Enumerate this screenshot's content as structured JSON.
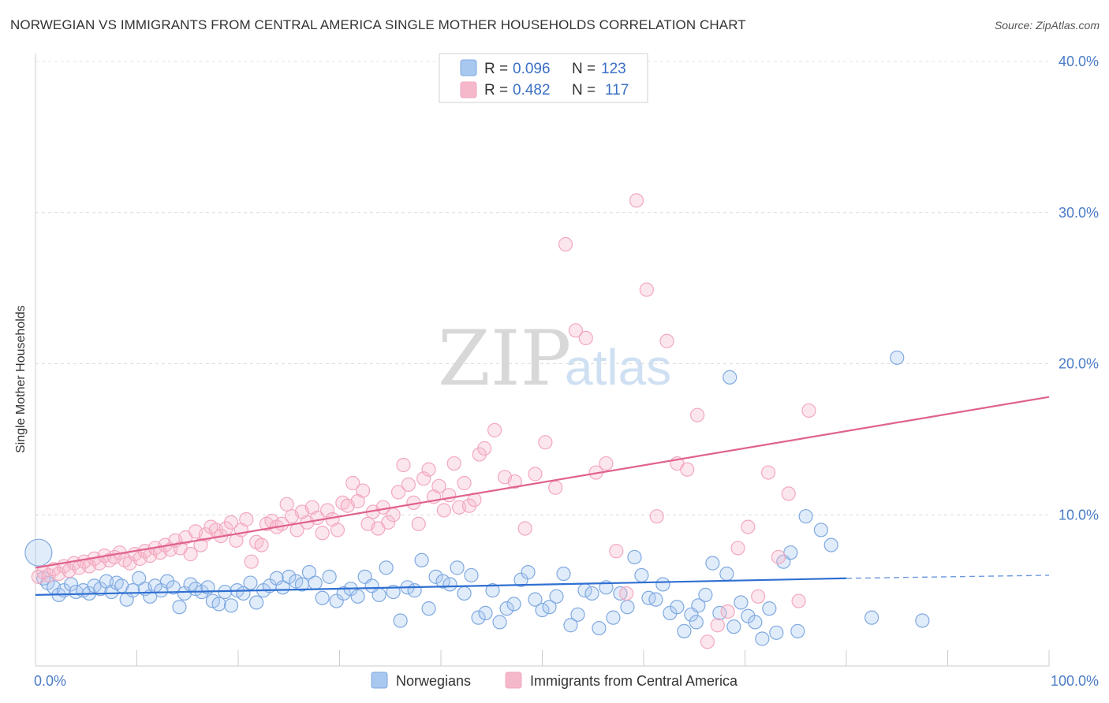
{
  "title": "NORWEGIAN VS IMMIGRANTS FROM CENTRAL AMERICA SINGLE MOTHER HOUSEHOLDS CORRELATION CHART",
  "source": "Source: ZipAtlas.com",
  "watermark": {
    "zip": "ZIP",
    "atlas": "atlas"
  },
  "legend_top": [
    {
      "r_label": "R =",
      "r_value": "0.096",
      "n_label": "N =",
      "n_value": "123",
      "color": "#a9c8f0"
    },
    {
      "r_label": "R =",
      "r_value": "0.482",
      "n_label": "N =",
      "n_value": "117",
      "color": "#f5b8cb"
    }
  ],
  "chart_data": {
    "type": "scatter",
    "title": "NORWEGIAN VS IMMIGRANTS FROM CENTRAL AMERICA SINGLE MOTHER HOUSEHOLDS CORRELATION CHART",
    "xlabel": "",
    "ylabel": "Single Mother Households",
    "xlim": [
      0,
      100
    ],
    "ylim": [
      0,
      40
    ],
    "x_tick_labels": [
      "0.0%",
      "100.0%"
    ],
    "y_ticks": [
      10,
      20,
      30,
      40
    ],
    "y_tick_labels": [
      "10.0%",
      "20.0%",
      "30.0%",
      "40.0%"
    ],
    "grid": "horizontal dashed",
    "legend_placement": "top-center",
    "series": [
      {
        "name": "Norwegians",
        "color": "#7fa9e0",
        "line_color": "#2f6fd1",
        "trend": {
          "x0": 0,
          "y0": 4.7,
          "x1": 80,
          "y1": 5.8,
          "dashed_to": 100,
          "dashed_y": 6.0
        },
        "points": [
          [
            0.3,
            7.5
          ],
          [
            0.8,
            5.8
          ],
          [
            1.2,
            5.5
          ],
          [
            1.8,
            5.2
          ],
          [
            2.3,
            4.7
          ],
          [
            2.8,
            5.0
          ],
          [
            3.5,
            5.4
          ],
          [
            4.0,
            4.9
          ],
          [
            4.7,
            5.0
          ],
          [
            5.3,
            4.8
          ],
          [
            5.8,
            5.3
          ],
          [
            6.4,
            5.1
          ],
          [
            7.0,
            5.6
          ],
          [
            7.5,
            4.9
          ],
          [
            8.0,
            5.5
          ],
          [
            8.5,
            5.3
          ],
          [
            9.0,
            4.4
          ],
          [
            9.6,
            5.0
          ],
          [
            10.2,
            5.8
          ],
          [
            10.8,
            5.1
          ],
          [
            11.3,
            4.6
          ],
          [
            11.8,
            5.3
          ],
          [
            12.4,
            5.0
          ],
          [
            13.0,
            5.6
          ],
          [
            13.6,
            5.2
          ],
          [
            14.2,
            3.9
          ],
          [
            14.7,
            4.8
          ],
          [
            15.3,
            5.4
          ],
          [
            15.8,
            5.1
          ],
          [
            16.4,
            4.9
          ],
          [
            17.0,
            5.2
          ],
          [
            17.5,
            4.3
          ],
          [
            18.1,
            4.1
          ],
          [
            18.7,
            4.9
          ],
          [
            19.3,
            4.0
          ],
          [
            19.9,
            5.0
          ],
          [
            20.5,
            4.8
          ],
          [
            21.2,
            5.5
          ],
          [
            21.8,
            4.2
          ],
          [
            22.5,
            5.0
          ],
          [
            23.1,
            5.3
          ],
          [
            23.8,
            5.8
          ],
          [
            24.4,
            5.2
          ],
          [
            25.0,
            5.9
          ],
          [
            25.7,
            5.6
          ],
          [
            26.3,
            5.4
          ],
          [
            27.0,
            6.2
          ],
          [
            27.6,
            5.5
          ],
          [
            28.3,
            4.5
          ],
          [
            29.0,
            5.9
          ],
          [
            29.7,
            4.3
          ],
          [
            30.4,
            4.8
          ],
          [
            31.1,
            5.1
          ],
          [
            31.8,
            4.6
          ],
          [
            32.5,
            5.9
          ],
          [
            33.2,
            5.3
          ],
          [
            33.9,
            4.7
          ],
          [
            34.6,
            6.5
          ],
          [
            35.3,
            4.9
          ],
          [
            36.0,
            3.0
          ],
          [
            36.7,
            5.2
          ],
          [
            37.4,
            5.0
          ],
          [
            38.1,
            7.0
          ],
          [
            38.8,
            3.8
          ],
          [
            39.5,
            5.9
          ],
          [
            40.2,
            5.6
          ],
          [
            40.9,
            5.4
          ],
          [
            41.6,
            6.5
          ],
          [
            42.3,
            4.8
          ],
          [
            43.0,
            6.0
          ],
          [
            43.7,
            3.2
          ],
          [
            44.4,
            3.5
          ],
          [
            45.1,
            5.0
          ],
          [
            45.8,
            2.9
          ],
          [
            46.5,
            3.8
          ],
          [
            47.2,
            4.1
          ],
          [
            47.9,
            5.7
          ],
          [
            48.6,
            6.2
          ],
          [
            49.3,
            4.4
          ],
          [
            50.0,
            3.7
          ],
          [
            50.7,
            3.9
          ],
          [
            51.4,
            4.6
          ],
          [
            52.1,
            6.1
          ],
          [
            52.8,
            2.7
          ],
          [
            53.5,
            3.4
          ],
          [
            54.2,
            5.0
          ],
          [
            54.9,
            4.8
          ],
          [
            55.6,
            2.5
          ],
          [
            56.3,
            5.2
          ],
          [
            57.0,
            3.2
          ],
          [
            57.7,
            4.8
          ],
          [
            58.4,
            3.9
          ],
          [
            59.1,
            7.2
          ],
          [
            59.8,
            6.0
          ],
          [
            60.5,
            4.5
          ],
          [
            61.2,
            4.4
          ],
          [
            61.9,
            5.4
          ],
          [
            62.6,
            3.5
          ],
          [
            63.3,
            3.9
          ],
          [
            64.0,
            2.3
          ],
          [
            64.7,
            3.4
          ],
          [
            65.4,
            4.0
          ],
          [
            66.1,
            4.7
          ],
          [
            66.8,
            6.8
          ],
          [
            67.5,
            3.5
          ],
          [
            68.2,
            6.1
          ],
          [
            68.9,
            2.6
          ],
          [
            69.6,
            4.2
          ],
          [
            70.3,
            3.3
          ],
          [
            71.0,
            2.9
          ],
          [
            71.7,
            1.8
          ],
          [
            72.4,
            3.8
          ],
          [
            73.1,
            2.2
          ],
          [
            73.8,
            6.9
          ],
          [
            74.5,
            7.5
          ],
          [
            75.2,
            2.3
          ],
          [
            76.0,
            9.9
          ],
          [
            77.5,
            9.0
          ],
          [
            78.5,
            8.0
          ],
          [
            68.5,
            19.1
          ],
          [
            65.2,
            2.9
          ],
          [
            82.5,
            3.2
          ],
          [
            85.0,
            20.4
          ],
          [
            87.5,
            3.0
          ]
        ]
      },
      {
        "name": "Immigrants from Central America",
        "color": "#f2a8bf",
        "line_color": "#e0628e",
        "trend": {
          "x0": 0,
          "y0": 6.5,
          "x1": 100,
          "y1": 17.8
        },
        "points": [
          [
            0.3,
            5.9
          ],
          [
            0.8,
            6.2
          ],
          [
            1.3,
            6.0
          ],
          [
            1.8,
            6.4
          ],
          [
            2.3,
            6.1
          ],
          [
            2.8,
            6.6
          ],
          [
            3.3,
            6.3
          ],
          [
            3.8,
            6.8
          ],
          [
            4.3,
            6.5
          ],
          [
            4.8,
            6.9
          ],
          [
            5.3,
            6.6
          ],
          [
            5.8,
            7.1
          ],
          [
            6.3,
            6.8
          ],
          [
            6.8,
            7.3
          ],
          [
            7.3,
            7.0
          ],
          [
            7.8,
            7.2
          ],
          [
            8.3,
            7.5
          ],
          [
            8.8,
            7.0
          ],
          [
            9.3,
            6.8
          ],
          [
            9.8,
            7.4
          ],
          [
            10.3,
            7.1
          ],
          [
            10.8,
            7.6
          ],
          [
            11.3,
            7.3
          ],
          [
            11.8,
            7.8
          ],
          [
            12.3,
            7.5
          ],
          [
            12.8,
            8.0
          ],
          [
            13.3,
            7.7
          ],
          [
            13.8,
            8.3
          ],
          [
            14.3,
            7.8
          ],
          [
            14.8,
            8.5
          ],
          [
            15.3,
            7.4
          ],
          [
            15.8,
            8.9
          ],
          [
            16.3,
            8.0
          ],
          [
            16.8,
            8.7
          ],
          [
            17.3,
            9.2
          ],
          [
            17.8,
            9.0
          ],
          [
            18.3,
            8.6
          ],
          [
            18.8,
            9.1
          ],
          [
            19.3,
            9.5
          ],
          [
            19.8,
            8.3
          ],
          [
            20.3,
            9.0
          ],
          [
            20.8,
            9.7
          ],
          [
            21.3,
            6.9
          ],
          [
            21.8,
            8.2
          ],
          [
            22.3,
            8.0
          ],
          [
            22.8,
            9.4
          ],
          [
            23.3,
            9.6
          ],
          [
            23.8,
            9.2
          ],
          [
            24.3,
            9.4
          ],
          [
            24.8,
            10.7
          ],
          [
            25.3,
            9.9
          ],
          [
            25.8,
            9.0
          ],
          [
            26.3,
            10.2
          ],
          [
            26.8,
            9.5
          ],
          [
            27.3,
            10.5
          ],
          [
            27.8,
            9.8
          ],
          [
            28.3,
            8.8
          ],
          [
            28.8,
            10.3
          ],
          [
            29.3,
            9.7
          ],
          [
            29.8,
            9.0
          ],
          [
            30.3,
            10.8
          ],
          [
            30.8,
            10.6
          ],
          [
            31.3,
            12.1
          ],
          [
            31.8,
            10.9
          ],
          [
            32.3,
            11.6
          ],
          [
            32.8,
            9.4
          ],
          [
            33.3,
            10.2
          ],
          [
            33.8,
            9.1
          ],
          [
            34.3,
            10.5
          ],
          [
            34.8,
            9.5
          ],
          [
            35.3,
            10.0
          ],
          [
            35.8,
            11.5
          ],
          [
            36.3,
            13.3
          ],
          [
            36.8,
            12.0
          ],
          [
            37.3,
            10.8
          ],
          [
            37.8,
            9.4
          ],
          [
            38.3,
            12.4
          ],
          [
            38.8,
            13.0
          ],
          [
            39.3,
            11.2
          ],
          [
            39.8,
            11.9
          ],
          [
            40.3,
            10.3
          ],
          [
            40.8,
            11.3
          ],
          [
            41.3,
            13.4
          ],
          [
            41.8,
            10.5
          ],
          [
            42.3,
            12.1
          ],
          [
            42.8,
            10.6
          ],
          [
            43.3,
            11.0
          ],
          [
            43.8,
            14.0
          ],
          [
            44.3,
            14.4
          ],
          [
            45.3,
            15.6
          ],
          [
            46.3,
            12.5
          ],
          [
            47.3,
            12.2
          ],
          [
            48.3,
            9.1
          ],
          [
            49.3,
            12.7
          ],
          [
            50.3,
            14.8
          ],
          [
            51.3,
            11.8
          ],
          [
            52.3,
            27.9
          ],
          [
            53.3,
            22.2
          ],
          [
            54.3,
            21.7
          ],
          [
            55.3,
            12.8
          ],
          [
            56.3,
            13.4
          ],
          [
            57.3,
            7.6
          ],
          [
            58.3,
            4.8
          ],
          [
            59.3,
            30.8
          ],
          [
            60.3,
            24.9
          ],
          [
            61.3,
            9.9
          ],
          [
            62.3,
            21.5
          ],
          [
            63.3,
            13.4
          ],
          [
            64.3,
            13.0
          ],
          [
            65.3,
            16.6
          ],
          [
            66.3,
            1.6
          ],
          [
            67.3,
            2.7
          ],
          [
            68.3,
            3.6
          ],
          [
            69.3,
            7.8
          ],
          [
            70.3,
            9.2
          ],
          [
            71.3,
            4.6
          ],
          [
            72.3,
            12.8
          ],
          [
            73.3,
            7.2
          ],
          [
            74.3,
            11.4
          ],
          [
            75.3,
            4.3
          ],
          [
            76.3,
            16.9
          ]
        ]
      }
    ]
  },
  "bottom_legend": [
    {
      "label": "Norwegians",
      "color": "#a9c8f0"
    },
    {
      "label": "Immigrants from Central America",
      "color": "#f5b8cb"
    }
  ]
}
